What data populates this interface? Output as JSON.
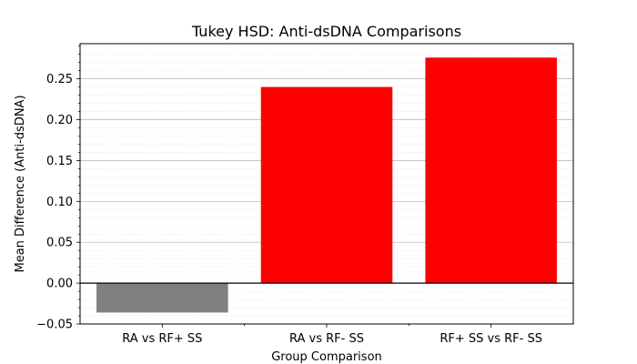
{
  "chart_data": {
    "type": "bar",
    "title": "Tukey HSD: Anti-dsDNA Comparisons",
    "xlabel": "Group Comparison",
    "ylabel": "Mean Difference (Anti-dsDNA)",
    "categories": [
      "RA vs RF+ SS",
      "RA vs RF- SS",
      "RF+ SS vs RF- SS"
    ],
    "values": [
      -0.036,
      0.24,
      0.276
    ],
    "bar_colors": [
      "#808080",
      "#ff0000",
      "#ff0000"
    ],
    "ylim": [
      -0.05,
      0.293
    ],
    "yticks": [
      -0.05,
      0.0,
      0.05,
      0.1,
      0.15,
      0.2,
      0.25
    ],
    "ytick_labels": [
      "−0.05",
      "0.00",
      "0.05",
      "0.10",
      "0.15",
      "0.20",
      "0.25"
    ],
    "grid": true,
    "zero_line": true,
    "legend": null
  }
}
